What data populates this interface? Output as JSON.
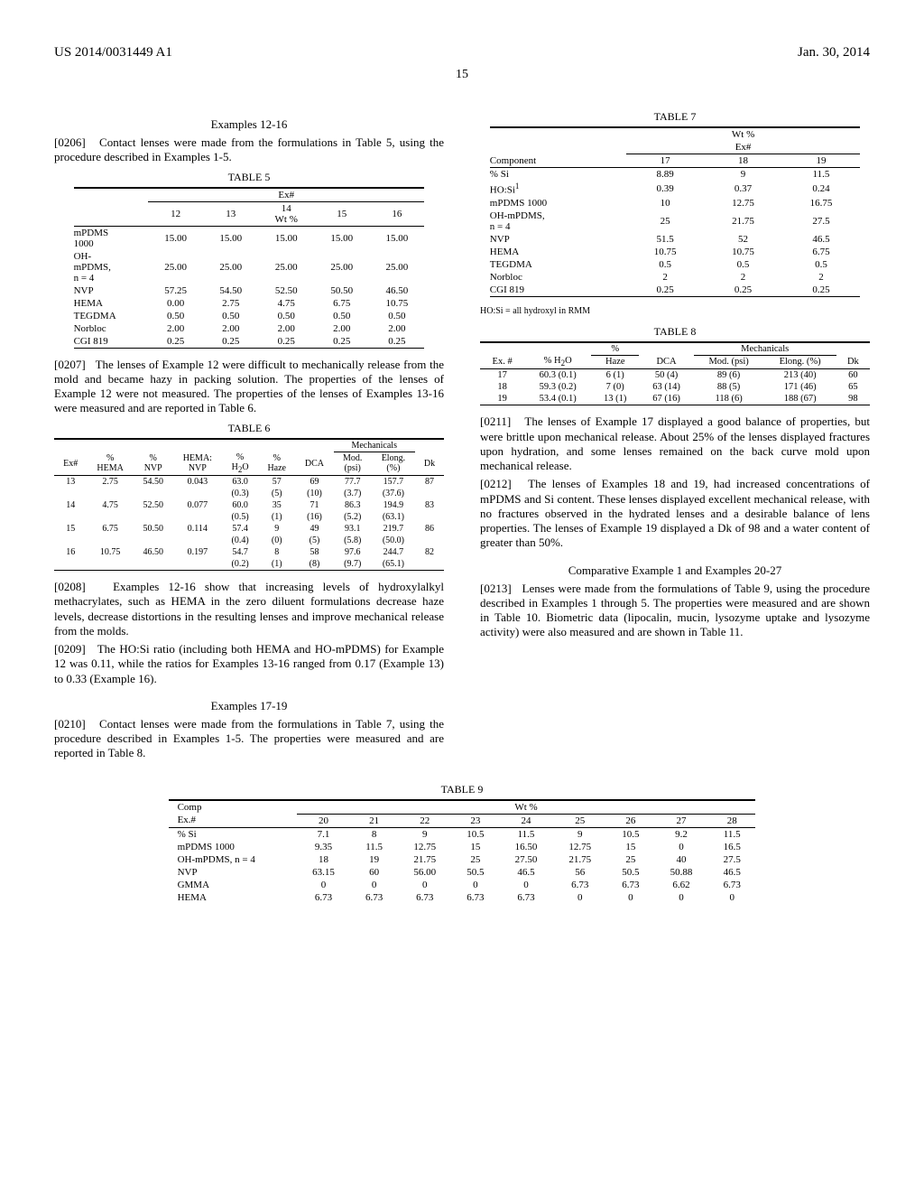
{
  "header": {
    "left": "US 2014/0031449 A1",
    "right": "Jan. 30, 2014"
  },
  "page_number": "15",
  "left_col": {
    "h1": "Examples 12-16",
    "p0206_num": "[0206]",
    "p0206": "Contact lenses were made from the formulations in Table 5, using the procedure described in Examples 1-5.",
    "table5": {
      "caption": "TABLE 5",
      "super_header": "Ex#",
      "sub_header": "14",
      "sub_header_unit": "Wt %",
      "cols": [
        "12",
        "13",
        "",
        "15",
        "16"
      ],
      "rows": [
        {
          "label": "mPDMS 1000",
          "v": [
            "15.00",
            "15.00",
            "15.00",
            "15.00",
            "15.00"
          ]
        },
        {
          "label": "OH-mPDMS, n = 4",
          "v": [
            "25.00",
            "25.00",
            "25.00",
            "25.00",
            "25.00"
          ]
        },
        {
          "label": "NVP",
          "v": [
            "57.25",
            "54.50",
            "52.50",
            "50.50",
            "46.50"
          ]
        },
        {
          "label": "HEMA",
          "v": [
            "0.00",
            "2.75",
            "4.75",
            "6.75",
            "10.75"
          ]
        },
        {
          "label": "TEGDMA",
          "v": [
            "0.50",
            "0.50",
            "0.50",
            "0.50",
            "0.50"
          ]
        },
        {
          "label": "Norbloc",
          "v": [
            "2.00",
            "2.00",
            "2.00",
            "2.00",
            "2.00"
          ]
        },
        {
          "label": "CGI 819",
          "v": [
            "0.25",
            "0.25",
            "0.25",
            "0.25",
            "0.25"
          ]
        }
      ]
    },
    "p0207_num": "[0207]",
    "p0207": "The lenses of Example 12 were difficult to mechanically release from the mold and became hazy in packing solution. The properties of the lenses of Example 12 were not measured. The properties of the lenses of Examples 13-16 were measured and are reported in Table 6.",
    "table6": {
      "caption": "TABLE 6",
      "mech_header": "Mechanicals",
      "headers": [
        "Ex#",
        "% HEMA",
        "% NVP",
        "HEMA: NVP",
        "% H₂O",
        "% Haze",
        "DCA",
        "Mod. (psi)",
        "Elong. (%)",
        "Dk"
      ],
      "rows": [
        {
          "v": [
            "13",
            "2.75",
            "54.50",
            "0.043",
            "63.0",
            "57",
            "69",
            "77.7",
            "157.7",
            "87"
          ],
          "std": [
            "",
            "",
            "",
            "",
            "(0.3)",
            "(5)",
            "(10)",
            "(3.7)",
            "(37.6)",
            ""
          ]
        },
        {
          "v": [
            "14",
            "4.75",
            "52.50",
            "0.077",
            "60.0",
            "35",
            "71",
            "86.3",
            "194.9",
            "83"
          ],
          "std": [
            "",
            "",
            "",
            "",
            "(0.5)",
            "(1)",
            "(16)",
            "(5.2)",
            "(63.1)",
            ""
          ]
        },
        {
          "v": [
            "15",
            "6.75",
            "50.50",
            "0.114",
            "57.4",
            "9",
            "49",
            "93.1",
            "219.7",
            "86"
          ],
          "std": [
            "",
            "",
            "",
            "",
            "(0.4)",
            "(0)",
            "(5)",
            "(5.8)",
            "(50.0)",
            ""
          ]
        },
        {
          "v": [
            "16",
            "10.75",
            "46.50",
            "0.197",
            "54.7",
            "8",
            "58",
            "97.6",
            "244.7",
            "82"
          ],
          "std": [
            "",
            "",
            "",
            "",
            "(0.2)",
            "(1)",
            "(8)",
            "(9.7)",
            "(65.1)",
            ""
          ]
        }
      ]
    },
    "p0208_num": "[0208]",
    "p0208": "Examples 12-16 show that increasing levels of hydroxylalkyl methacrylates, such as HEMA in the zero diluent formulations decrease haze levels, decrease distortions in the resulting lenses and improve mechanical release from the molds.",
    "p0209_num": "[0209]",
    "p0209": "The HO:Si ratio (including both HEMA and HO-mPDMS) for Example 12 was 0.11, while the ratios for Examples 13-16 ranged from 0.17 (Example 13) to 0.33 (Example 16).",
    "h2": "Examples 17-19",
    "p0210_num": "[0210]",
    "p0210": "Contact lenses were made from the formulations in Table 7, using the procedure described in Examples 1-5. The properties were measured and are reported in Table 8."
  },
  "right_col": {
    "table7": {
      "caption": "TABLE 7",
      "super_header": "Wt %",
      "super_header2": "Ex#",
      "component_label": "Component",
      "cols": [
        "17",
        "18",
        "19"
      ],
      "rows": [
        {
          "label": "% Si",
          "v": [
            "8.89",
            "9",
            "11.5"
          ]
        },
        {
          "label": "HO:Si¹",
          "v": [
            "0.39",
            "0.37",
            "0.24"
          ]
        },
        {
          "label": "mPDMS 1000",
          "v": [
            "10",
            "12.75",
            "16.75"
          ]
        },
        {
          "label": "OH-mPDMS, n = 4",
          "v": [
            "25",
            "21.75",
            "27.5"
          ]
        },
        {
          "label": "NVP",
          "v": [
            "51.5",
            "52",
            "46.5"
          ]
        },
        {
          "label": "HEMA",
          "v": [
            "10.75",
            "10.75",
            "6.75"
          ]
        },
        {
          "label": "TEGDMA",
          "v": [
            "0.5",
            "0.5",
            "0.5"
          ]
        },
        {
          "label": "Norbloc",
          "v": [
            "2",
            "2",
            "2"
          ]
        },
        {
          "label": "CGI 819",
          "v": [
            "0.25",
            "0.25",
            "0.25"
          ]
        }
      ],
      "footnote": "HO:Si = all hydroxyl in RMM"
    },
    "table8": {
      "caption": "TABLE 8",
      "pct_header": "%",
      "mech_header": "Mechanicals",
      "headers": [
        "Ex. #",
        "% H₂O",
        "Haze",
        "DCA",
        "Mod. (psi)",
        "Elong. (%)",
        "Dk"
      ],
      "rows": [
        {
          "v": [
            "17",
            "60.3 (0.1)",
            "6 (1)",
            "50 (4)",
            "89 (6)",
            "213 (40)",
            "60"
          ]
        },
        {
          "v": [
            "18",
            "59.3 (0.2)",
            "7 (0)",
            "63 (14)",
            "88 (5)",
            "171 (46)",
            "65"
          ]
        },
        {
          "v": [
            "19",
            "53.4 (0.1)",
            "13 (1)",
            "67 (16)",
            "118 (6)",
            "188 (67)",
            "98"
          ]
        }
      ]
    },
    "p0211_num": "[0211]",
    "p0211": "The lenses of Example 17 displayed a good balance of properties, but were brittle upon mechanical release. About 25% of the lenses displayed fractures upon hydration, and some lenses remained on the back curve mold upon mechanical release.",
    "p0212_num": "[0212]",
    "p0212": "The lenses of Examples 18 and 19, had increased concentrations of mPDMS and Si content. These lenses displayed excellent mechanical release, with no fractures observed in the hydrated lenses and a desirable balance of lens properties. The lenses of Example 19 displayed a Dk of 98 and a water content of greater than 50%.",
    "h3": "Comparative Example 1 and Examples 20-27",
    "p0213_num": "[0213]",
    "p0213": "Lenses were made from the formulations of Table 9, using the procedure described in Examples 1 through 5. The properties were measured and are shown in Table 10. Biometric data (lipocalin, mucin, lysozyme uptake and lysozyme activity) were also measured and are shown in Table 11."
  },
  "table9": {
    "caption": "TABLE 9",
    "comp_label": "Comp",
    "ex_label": "Ex.#",
    "wt_label": "Wt %",
    "cols": [
      "20",
      "21",
      "22",
      "23",
      "24",
      "25",
      "26",
      "27",
      "28"
    ],
    "rows": [
      {
        "label": "% Si",
        "v": [
          "7.1",
          "8",
          "9",
          "10.5",
          "11.5",
          "9",
          "10.5",
          "9.2",
          "11.5"
        ]
      },
      {
        "label": "mPDMS 1000",
        "v": [
          "9.35",
          "11.5",
          "12.75",
          "15",
          "16.50",
          "12.75",
          "15",
          "0",
          "16.5"
        ]
      },
      {
        "label": "OH-mPDMS, n = 4",
        "v": [
          "18",
          "19",
          "21.75",
          "25",
          "27.50",
          "21.75",
          "25",
          "40",
          "27.5"
        ]
      },
      {
        "label": "NVP",
        "v": [
          "63.15",
          "60",
          "56.00",
          "50.5",
          "46.5",
          "56",
          "50.5",
          "50.88",
          "46.5"
        ]
      },
      {
        "label": "GMMA",
        "v": [
          "0",
          "0",
          "0",
          "0",
          "0",
          "6.73",
          "6.73",
          "6.62",
          "6.73"
        ]
      },
      {
        "label": "HEMA",
        "v": [
          "6.73",
          "6.73",
          "6.73",
          "6.73",
          "6.73",
          "0",
          "0",
          "0",
          "0"
        ]
      }
    ]
  }
}
